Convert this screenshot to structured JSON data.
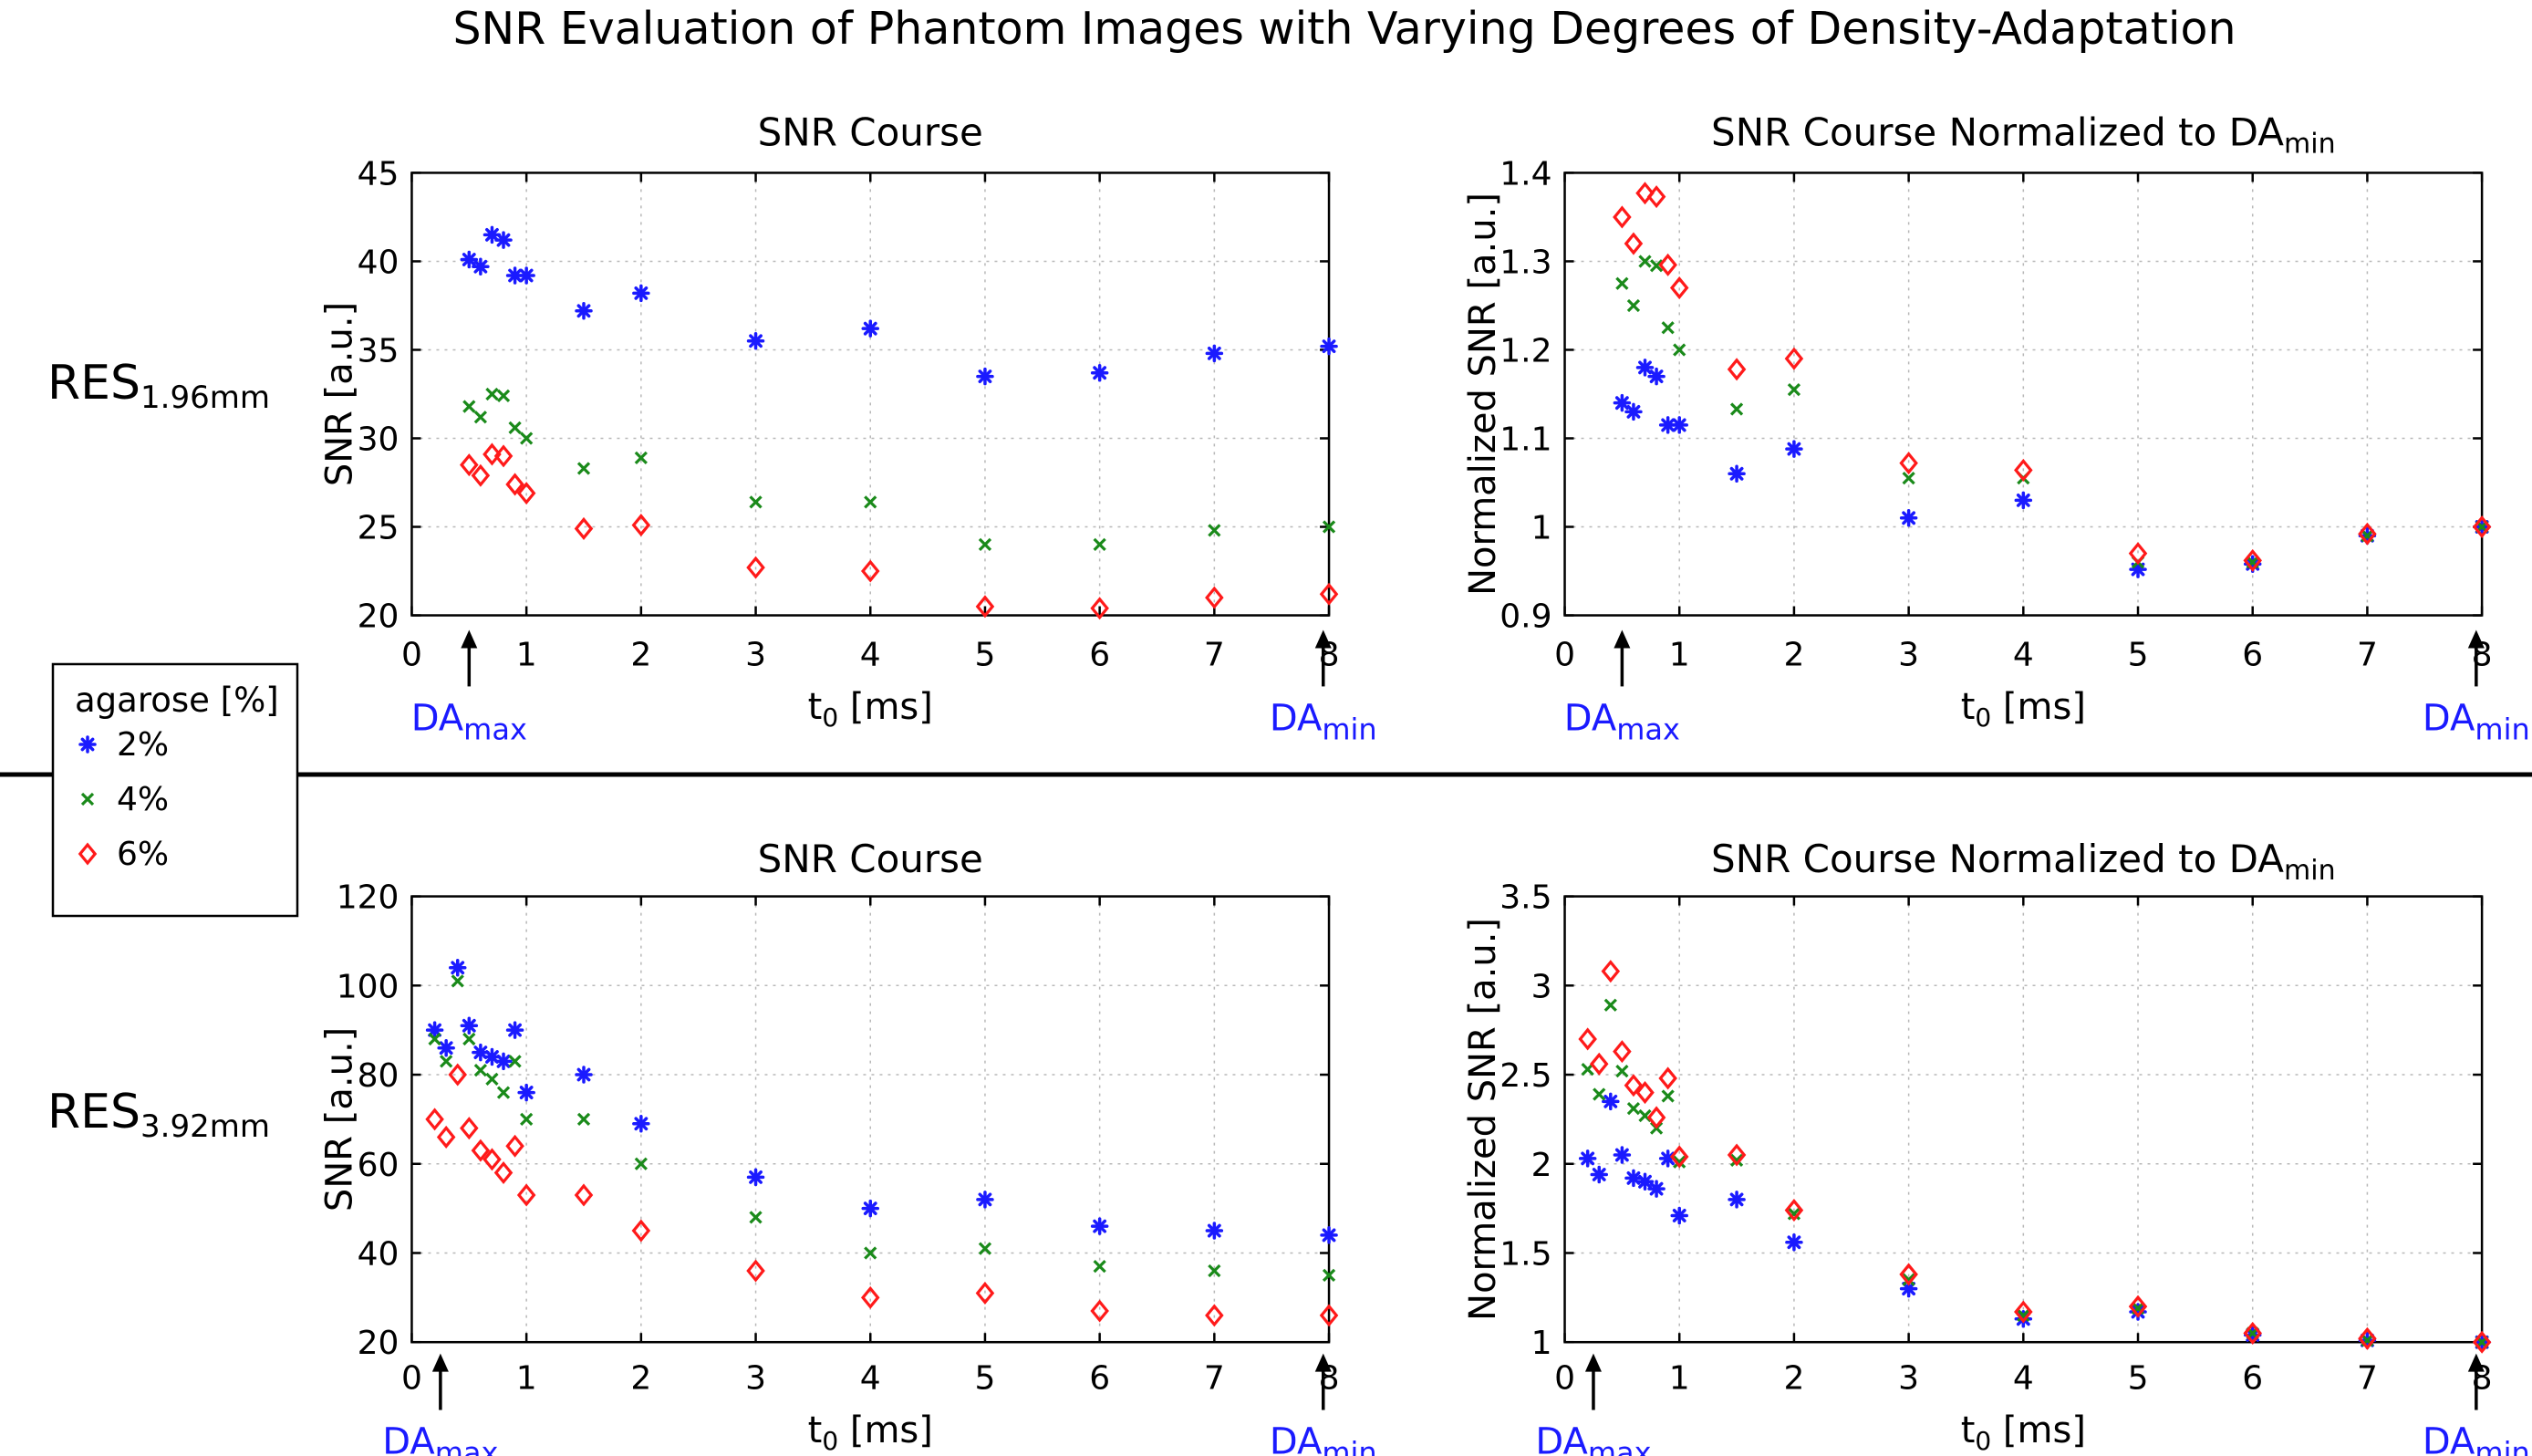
{
  "figure_title": "SNR Evaluation of Phantom Images with Varying Degrees of Density-Adaptation",
  "row_labels": [
    {
      "main": "RES",
      "sub": "1.96mm"
    },
    {
      "main": "RES",
      "sub": "3.92mm"
    }
  ],
  "legend": {
    "title": "agarose [%]",
    "entries": [
      {
        "label": "2%",
        "marker": "asterisk",
        "color": "#1a1aff"
      },
      {
        "label": "4%",
        "marker": "x",
        "color": "#1a8a1a"
      },
      {
        "label": "6%",
        "marker": "diamond",
        "color": "#ff1a1a"
      }
    ]
  },
  "annotations": {
    "da_main": "DA",
    "da_max_sub": "max",
    "da_min_sub": "min"
  },
  "chart_data": [
    {
      "type": "scatter",
      "title": "SNR Course",
      "xlabel_main": "t",
      "xlabel_sub": "0",
      "xlabel_unit": " [ms]",
      "ylabel": "SNR [a.u.]",
      "xlim": [
        0,
        8
      ],
      "ylim": [
        20,
        45
      ],
      "xticks": [
        0,
        1,
        2,
        3,
        4,
        5,
        6,
        7,
        8
      ],
      "yticks": [
        20,
        25,
        30,
        35,
        40,
        45
      ],
      "ytick_labels": [
        "20",
        "25",
        "30",
        "35",
        "40",
        "45"
      ],
      "da_max_x": 0.5,
      "da_min_x": 7.95,
      "x": [
        0.5,
        0.6,
        0.7,
        0.8,
        0.9,
        1.0,
        1.5,
        2,
        3,
        4,
        5,
        6,
        7,
        8
      ],
      "series": [
        {
          "name": "2%",
          "values": [
            40.1,
            39.7,
            41.5,
            41.2,
            39.2,
            39.2,
            37.2,
            38.2,
            35.5,
            36.2,
            33.5,
            33.7,
            34.8,
            35.2
          ]
        },
        {
          "name": "4%",
          "values": [
            31.8,
            31.2,
            32.5,
            32.4,
            30.6,
            30.0,
            28.3,
            28.9,
            26.4,
            26.4,
            24.0,
            24.0,
            24.8,
            25.0
          ]
        },
        {
          "name": "6%",
          "values": [
            28.5,
            27.9,
            29.1,
            29.0,
            27.4,
            26.9,
            24.9,
            25.1,
            22.7,
            22.5,
            20.5,
            20.4,
            21.0,
            21.2
          ]
        }
      ]
    },
    {
      "type": "scatter",
      "title": "SNR Course Normalized to ",
      "title_da": "DA",
      "title_sub": "min",
      "xlabel_main": "t",
      "xlabel_sub": "0",
      "xlabel_unit": " [ms]",
      "ylabel": "Normalized SNR [a.u.]",
      "xlim": [
        0,
        8
      ],
      "ylim": [
        0.9,
        1.4
      ],
      "xticks": [
        0,
        1,
        2,
        3,
        4,
        5,
        6,
        7,
        8
      ],
      "yticks": [
        0.9,
        1.0,
        1.1,
        1.2,
        1.3,
        1.4
      ],
      "ytick_labels": [
        "0.9",
        "1",
        "1.1",
        "1.2",
        "1.3",
        "1.4"
      ],
      "da_max_x": 0.5,
      "da_min_x": 7.95,
      "x": [
        0.5,
        0.6,
        0.7,
        0.8,
        0.9,
        1.0,
        1.5,
        2,
        3,
        4,
        5,
        6,
        7,
        8
      ],
      "series": [
        {
          "name": "2%",
          "values": [
            1.14,
            1.13,
            1.18,
            1.17,
            1.115,
            1.115,
            1.06,
            1.088,
            1.01,
            1.03,
            0.952,
            0.958,
            0.99,
            1.0
          ]
        },
        {
          "name": "4%",
          "values": [
            1.275,
            1.25,
            1.3,
            1.295,
            1.225,
            1.2,
            1.133,
            1.155,
            1.055,
            1.055,
            0.96,
            0.96,
            0.99,
            1.0
          ]
        },
        {
          "name": "6%",
          "values": [
            1.35,
            1.32,
            1.377,
            1.373,
            1.296,
            1.27,
            1.178,
            1.19,
            1.072,
            1.064,
            0.97,
            0.962,
            0.992,
            1.0
          ]
        }
      ]
    },
    {
      "type": "scatter",
      "title": "SNR Course",
      "xlabel_main": "t",
      "xlabel_sub": "0",
      "xlabel_unit": " [ms]",
      "ylabel": "SNR [a.u.]",
      "xlim": [
        0,
        8
      ],
      "ylim": [
        20,
        120
      ],
      "xticks": [
        0,
        1,
        2,
        3,
        4,
        5,
        6,
        7,
        8
      ],
      "yticks": [
        20,
        40,
        60,
        80,
        100,
        120
      ],
      "ytick_labels": [
        "20",
        "40",
        "60",
        "80",
        "100",
        "120"
      ],
      "da_max_x": 0.25,
      "da_min_x": 7.95,
      "x": [
        0.2,
        0.3,
        0.4,
        0.5,
        0.6,
        0.7,
        0.8,
        0.9,
        1.0,
        1.5,
        2,
        3,
        4,
        5,
        6,
        7,
        8
      ],
      "series": [
        {
          "name": "2%",
          "values": [
            90,
            86,
            104,
            91,
            85,
            84,
            83,
            90,
            76,
            80,
            69,
            57,
            50,
            52,
            46,
            45,
            44
          ]
        },
        {
          "name": "4%",
          "values": [
            88,
            83,
            101,
            88,
            81,
            79,
            76,
            83,
            70,
            70,
            60,
            48,
            40,
            41,
            37,
            36,
            35
          ]
        },
        {
          "name": "6%",
          "values": [
            70,
            66,
            80,
            68,
            63,
            61,
            58,
            64,
            53,
            53,
            45,
            36,
            30,
            31,
            27,
            26,
            26
          ]
        }
      ]
    },
    {
      "type": "scatter",
      "title": "SNR Course Normalized to ",
      "title_da": "DA",
      "title_sub": "min",
      "xlabel_main": "t",
      "xlabel_sub": "0",
      "xlabel_unit": " [ms]",
      "ylabel": "Normalized SNR [a.u.]",
      "xlim": [
        0,
        8
      ],
      "ylim": [
        1,
        3.5
      ],
      "xticks": [
        0,
        1,
        2,
        3,
        4,
        5,
        6,
        7,
        8
      ],
      "yticks": [
        1,
        1.5,
        2,
        2.5,
        3,
        3.5
      ],
      "ytick_labels": [
        "1",
        "1.5",
        "2",
        "2.5",
        "3",
        "3.5"
      ],
      "da_max_x": 0.25,
      "da_min_x": 7.95,
      "x": [
        0.2,
        0.3,
        0.4,
        0.5,
        0.6,
        0.7,
        0.8,
        0.9,
        1.0,
        1.5,
        2,
        3,
        4,
        5,
        6,
        7,
        8
      ],
      "series": [
        {
          "name": "2%",
          "values": [
            2.03,
            1.94,
            2.35,
            2.05,
            1.92,
            1.9,
            1.86,
            2.03,
            1.71,
            1.8,
            1.56,
            1.3,
            1.13,
            1.17,
            1.04,
            1.01,
            1.0
          ]
        },
        {
          "name": "4%",
          "values": [
            2.53,
            2.39,
            2.89,
            2.52,
            2.31,
            2.27,
            2.2,
            2.38,
            2.01,
            2.02,
            1.72,
            1.35,
            1.15,
            1.19,
            1.05,
            1.01,
            1.0
          ]
        },
        {
          "name": "6%",
          "values": [
            2.7,
            2.56,
            3.08,
            2.63,
            2.44,
            2.4,
            2.26,
            2.48,
            2.04,
            2.05,
            1.74,
            1.38,
            1.17,
            1.2,
            1.05,
            1.02,
            1.0
          ]
        }
      ]
    }
  ]
}
